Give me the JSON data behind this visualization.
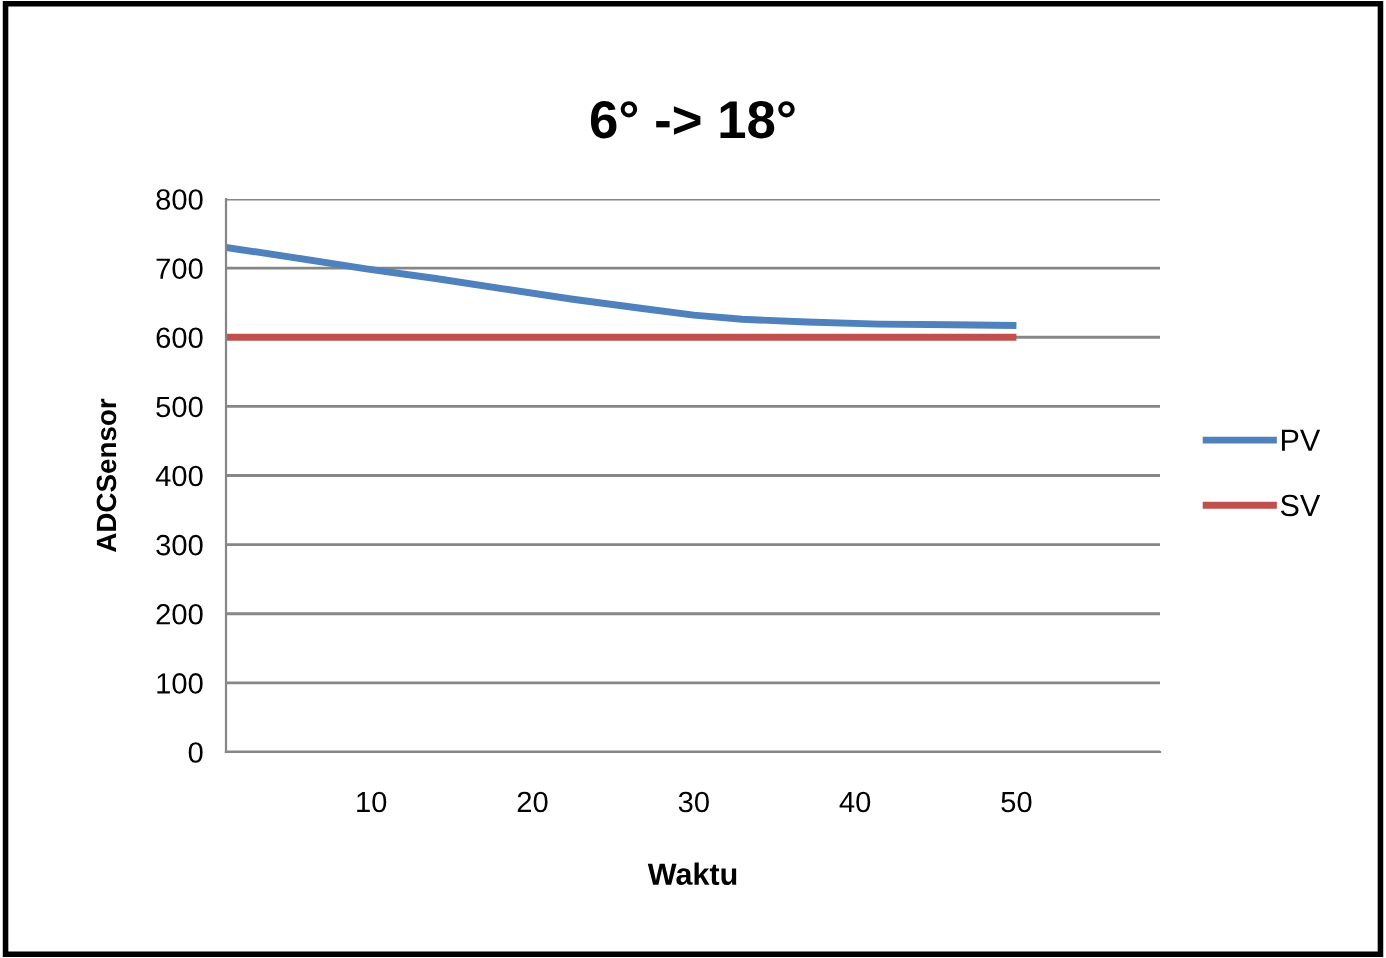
{
  "chart_data": {
    "type": "line",
    "title": "6° -> 18°",
    "xlabel": "Waktu",
    "ylabel": "ADCSensor",
    "series": [
      {
        "name": "PV",
        "color": "#4f81bd",
        "x": [
          1,
          5,
          9.7,
          14,
          18.2,
          22.5,
          26.7,
          30,
          33,
          37,
          41.5,
          46,
          50
        ],
        "values": [
          730,
          716,
          699,
          685,
          670,
          655,
          642,
          632,
          626,
          622,
          619,
          618,
          617
        ]
      },
      {
        "name": "SV",
        "color": "#c0504d",
        "x": [
          1,
          50
        ],
        "values": [
          600,
          600
        ]
      }
    ],
    "xlim": [
      1,
      58.9
    ],
    "xticks": [
      10,
      20,
      30,
      40,
      50
    ],
    "ylim": [
      0,
      800
    ],
    "yticks": [
      0,
      100,
      200,
      300,
      400,
      500,
      600,
      700,
      800
    ],
    "grid": "y",
    "legend": "right",
    "marker": "none",
    "line_style": "solid"
  }
}
